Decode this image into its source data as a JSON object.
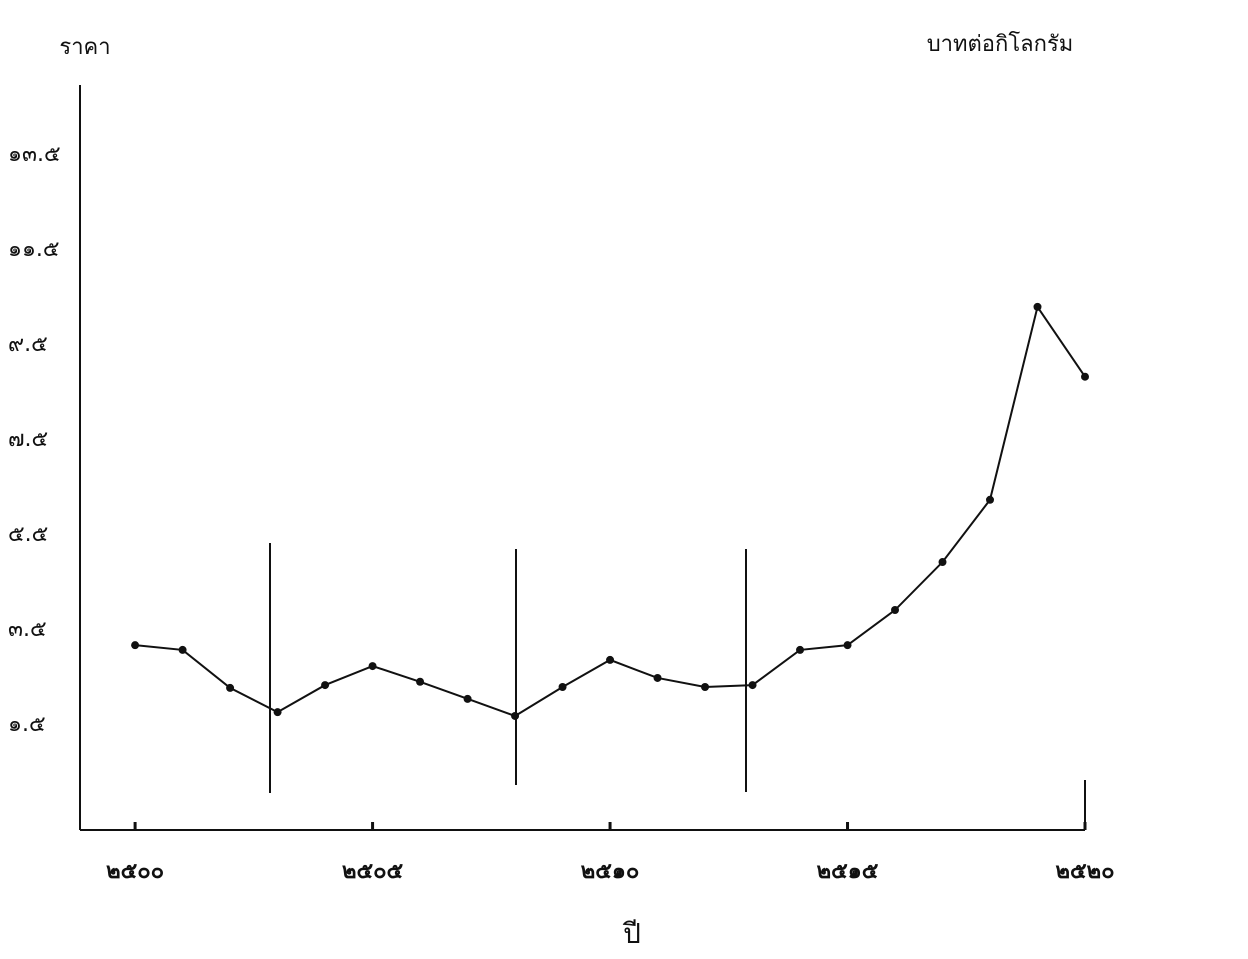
{
  "chart_data": {
    "type": "line",
    "y_label": "ราคา",
    "unit_label": "บาทต่อกิโลกรัม",
    "x_label": "ปี",
    "x": [
      2500,
      2501,
      2502,
      2503,
      2504,
      2505,
      2506,
      2507,
      2508,
      2509,
      2510,
      2511,
      2512,
      2513,
      2514,
      2515,
      2516,
      2517,
      2518,
      2519,
      2520
    ],
    "series": [
      {
        "color": "#111111",
        "values": [
          3.18,
          3.08,
          2.28,
          1.77,
          2.34,
          2.74,
          2.41,
          2.05,
          1.69,
          2.3,
          2.87,
          2.49,
          2.3,
          2.34,
          3.08,
          3.18,
          3.92,
          4.93,
          6.24,
          10.3,
          8.83
        ]
      }
    ],
    "xlim": [
      2498.84,
      2520
    ],
    "ylim": [
      -0.71,
      14.97
    ],
    "xticks": [
      {
        "value": 2500,
        "label": "๒๕๐๐"
      },
      {
        "value": 2505,
        "label": "๒๕๐๕"
      },
      {
        "value": 2510,
        "label": "๒๕๑๐"
      },
      {
        "value": 2515,
        "label": "๒๕๑๕"
      },
      {
        "value": 2520,
        "label": "๒๕๒๐"
      }
    ],
    "yticks": [
      {
        "value": 1.5,
        "label": "๑.๕"
      },
      {
        "value": 3.5,
        "label": "๓.๕"
      },
      {
        "value": 5.5,
        "label": "๕.๕"
      },
      {
        "value": 7.5,
        "label": "๗.๕"
      },
      {
        "value": 9.5,
        "label": "๙.๕"
      },
      {
        "value": 11.5,
        "label": "๑๑.๕"
      },
      {
        "value": 13.5,
        "label": "๑๓.๕"
      }
    ],
    "grid": false
  }
}
